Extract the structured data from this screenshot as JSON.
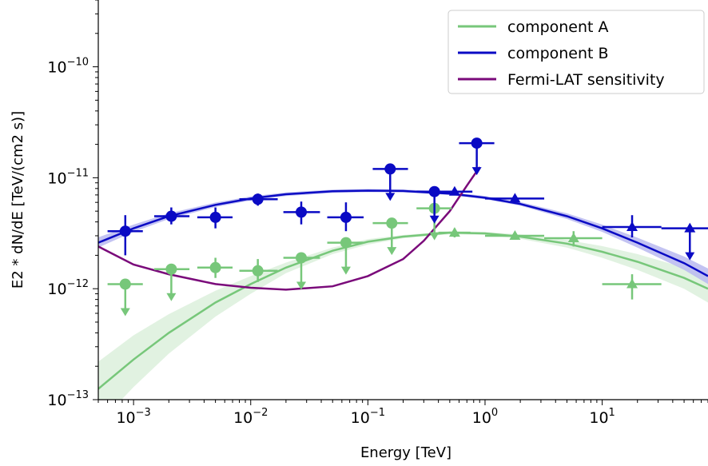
{
  "colors": {
    "component_a": "#77c77a",
    "component_a_band": "#d4ecd4",
    "component_b": "#0a0ac4",
    "component_b_band": "#b8b8f0",
    "sensitivity": "#7a0a7a"
  },
  "chart_data": {
    "type": "scatter",
    "title": "",
    "xlabel": "Energy [TeV]",
    "ylabel": "E2 * dN/dE [TeV/(cm2 s)]",
    "xscale": "log",
    "yscale": "log",
    "xlim": [
      0.0005,
      80
    ],
    "ylim": [
      1e-13,
      4e-10
    ],
    "x_ticks": [
      {
        "value": 0.001,
        "base": "10",
        "exp": "−3"
      },
      {
        "value": 0.01,
        "base": "10",
        "exp": "−2"
      },
      {
        "value": 0.1,
        "base": "10",
        "exp": "−1"
      },
      {
        "value": 1,
        "base": "10",
        "exp": "0"
      },
      {
        "value": 10,
        "base": "10",
        "exp": "1"
      }
    ],
    "y_ticks": [
      {
        "value": 1e-13,
        "base": "10",
        "exp": "−13"
      },
      {
        "value": 1e-12,
        "base": "10",
        "exp": "−12"
      },
      {
        "value": 1e-11,
        "base": "10",
        "exp": "−11"
      },
      {
        "value": 1e-10,
        "base": "10",
        "exp": "−10"
      }
    ],
    "grid": false,
    "legend": {
      "position": "top-right",
      "entries": [
        "component A",
        "component B",
        "Fermi-LAT sensitivity"
      ]
    },
    "series": [
      {
        "name": "component A",
        "kind": "model",
        "x": [
          0.0005,
          0.001,
          0.002,
          0.005,
          0.01,
          0.02,
          0.05,
          0.1,
          0.2,
          0.5,
          1,
          2,
          5,
          10,
          20,
          50,
          80
        ],
        "y": [
          1.25e-13,
          2.3e-13,
          4e-13,
          7.5e-13,
          1.1e-12,
          1.55e-12,
          2.2e-12,
          2.65e-12,
          2.95e-12,
          3.2e-12,
          3.15e-12,
          2.95e-12,
          2.55e-12,
          2.15e-12,
          1.75e-12,
          1.25e-12,
          1e-12
        ],
        "y_low": [
          6e-14,
          1.3e-13,
          2.6e-13,
          5.6e-13,
          9e-13,
          1.38e-12,
          2.05e-12,
          2.5e-12,
          2.85e-12,
          3.1e-12,
          3.05e-12,
          2.82e-12,
          2.35e-12,
          1.9e-12,
          1.48e-12,
          1e-12,
          7.5e-13
        ],
        "y_high": [
          2.2e-13,
          3.8e-13,
          5.9e-13,
          9.6e-13,
          1.3e-12,
          1.72e-12,
          2.35e-12,
          2.8e-12,
          3.05e-12,
          3.3e-12,
          3.25e-12,
          3.08e-12,
          2.75e-12,
          2.42e-12,
          2.05e-12,
          1.55e-12,
          1.3e-12
        ]
      },
      {
        "name": "component B",
        "kind": "model",
        "x": [
          0.0005,
          0.001,
          0.002,
          0.005,
          0.01,
          0.02,
          0.05,
          0.1,
          0.2,
          0.5,
          1,
          2,
          5,
          10,
          20,
          50,
          80
        ],
        "y": [
          2.6e-12,
          3.5e-12,
          4.5e-12,
          5.7e-12,
          6.5e-12,
          7.1e-12,
          7.55e-12,
          7.65e-12,
          7.6e-12,
          7.2e-12,
          6.6e-12,
          5.8e-12,
          4.5e-12,
          3.5e-12,
          2.6e-12,
          1.7e-12,
          1.3e-12
        ],
        "y_low": [
          2.35e-12,
          3.25e-12,
          4.25e-12,
          5.45e-12,
          6.25e-12,
          6.85e-12,
          7.3e-12,
          7.42e-12,
          7.38e-12,
          7e-12,
          6.4e-12,
          5.6e-12,
          4.25e-12,
          3.25e-12,
          2.35e-12,
          1.48e-12,
          1.1e-12
        ],
        "y_high": [
          2.9e-12,
          3.78e-12,
          4.78e-12,
          5.98e-12,
          6.78e-12,
          7.38e-12,
          7.82e-12,
          7.92e-12,
          7.85e-12,
          7.45e-12,
          6.85e-12,
          6.05e-12,
          4.78e-12,
          3.78e-12,
          2.88e-12,
          1.95e-12,
          1.52e-12
        ]
      },
      {
        "name": "Fermi-LAT sensitivity",
        "kind": "line",
        "x": [
          0.0005,
          0.001,
          0.002,
          0.005,
          0.01,
          0.02,
          0.05,
          0.1,
          0.2,
          0.3,
          0.5,
          0.7,
          0.9
        ],
        "y": [
          2.4e-12,
          1.65e-12,
          1.35e-12,
          1.1e-12,
          1.02e-12,
          9.8e-13,
          1.05e-12,
          1.3e-12,
          1.85e-12,
          2.7e-12,
          5e-12,
          8.5e-12,
          1.25e-11
        ]
      },
      {
        "name": "component A",
        "kind": "flux_points",
        "points": [
          {
            "x": 0.00085,
            "xlo": 0.0006,
            "xhi": 0.0012,
            "y": 1.1e-12,
            "ul": true
          },
          {
            "x": 0.0021,
            "xlo": 0.0015,
            "xhi": 0.003,
            "y": 1.5e-12,
            "ul": true
          },
          {
            "x": 0.005,
            "xlo": 0.0035,
            "xhi": 0.007,
            "y": 1.55e-12,
            "ylo": 1.25e-12,
            "yhi": 1.9e-12
          },
          {
            "x": 0.0115,
            "xlo": 0.008,
            "xhi": 0.017,
            "y": 1.45e-12,
            "ylo": 1.15e-12,
            "yhi": 1.85e-12
          },
          {
            "x": 0.027,
            "xlo": 0.019,
            "xhi": 0.039,
            "y": 1.9e-12,
            "ul": true
          },
          {
            "x": 0.065,
            "xlo": 0.045,
            "xhi": 0.092,
            "y": 2.6e-12,
            "ul": true
          },
          {
            "x": 0.16,
            "xlo": 0.11,
            "xhi": 0.22,
            "y": 3.9e-12,
            "ul": true
          },
          {
            "x": 0.37,
            "xlo": 0.26,
            "xhi": 0.52,
            "y": 5.3e-12,
            "ul": true
          },
          {
            "x": 0.55,
            "xlo": 0.4,
            "xhi": 0.75,
            "y": 3.2e-12,
            "ylo": 2.9e-12,
            "yhi": 3.5e-12,
            "marker": "triangle"
          },
          {
            "x": 1.8,
            "xlo": 1.0,
            "xhi": 3.2,
            "y": 3e-12,
            "ylo": 2.8e-12,
            "yhi": 3.2e-12,
            "marker": "triangle"
          },
          {
            "x": 5.7,
            "xlo": 3.2,
            "xhi": 10,
            "y": 2.85e-12,
            "ylo": 2.4e-12,
            "yhi": 3.3e-12,
            "marker": "triangle"
          },
          {
            "x": 18,
            "xlo": 10,
            "xhi": 32,
            "y": 1.1e-12,
            "ylo": 8e-13,
            "yhi": 1.35e-12,
            "marker": "triangle"
          }
        ]
      },
      {
        "name": "component B",
        "kind": "flux_points",
        "points": [
          {
            "x": 0.00085,
            "xlo": 0.0006,
            "xhi": 0.0012,
            "y": 3.3e-12,
            "ylo": 2e-12,
            "yhi": 4.6e-12
          },
          {
            "x": 0.0021,
            "xlo": 0.0015,
            "xhi": 0.003,
            "y": 4.5e-12,
            "ylo": 3.8e-12,
            "yhi": 5.4e-12
          },
          {
            "x": 0.005,
            "xlo": 0.0035,
            "xhi": 0.007,
            "y": 4.4e-12,
            "ylo": 3.5e-12,
            "yhi": 5.4e-12
          },
          {
            "x": 0.0115,
            "xlo": 0.008,
            "xhi": 0.017,
            "y": 6.4e-12,
            "ylo": 5.6e-12,
            "yhi": 7.2e-12
          },
          {
            "x": 0.027,
            "xlo": 0.019,
            "xhi": 0.039,
            "y": 4.9e-12,
            "ylo": 3.8e-12,
            "yhi": 6.1e-12
          },
          {
            "x": 0.065,
            "xlo": 0.045,
            "xhi": 0.092,
            "y": 4.4e-12,
            "ylo": 3.3e-12,
            "yhi": 6e-12
          },
          {
            "x": 0.155,
            "xlo": 0.11,
            "xhi": 0.22,
            "y": 1.2e-11,
            "ul": true
          },
          {
            "x": 0.37,
            "xlo": 0.26,
            "xhi": 0.52,
            "y": 7.5e-12,
            "ul": true
          },
          {
            "x": 0.55,
            "xlo": 0.4,
            "xhi": 0.78,
            "y": 7.5e-12,
            "ylo": 7.1e-12,
            "yhi": 7.9e-12,
            "marker": "triangle"
          },
          {
            "x": 0.85,
            "xlo": 0.6,
            "xhi": 1.2,
            "y": 2.05e-11,
            "ul": true
          },
          {
            "x": 1.8,
            "xlo": 1.0,
            "xhi": 3.2,
            "y": 6.5e-12,
            "ylo": 6.1e-12,
            "yhi": 6.9e-12,
            "marker": "triangle"
          },
          {
            "x": 18,
            "xlo": 10,
            "xhi": 32,
            "y": 3.6e-12,
            "ylo": 2.9e-12,
            "yhi": 4.6e-12,
            "marker": "triangle"
          },
          {
            "x": 56,
            "xlo": 32,
            "xhi": 80,
            "y": 3.5e-12,
            "ul": true,
            "marker": "triangle"
          }
        ]
      }
    ]
  }
}
